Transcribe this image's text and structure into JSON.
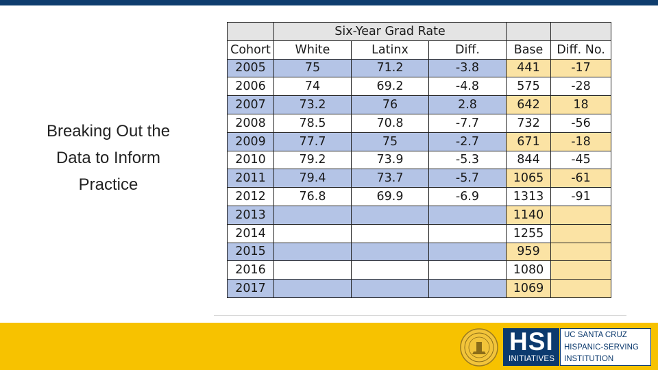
{
  "slide": {
    "title_lines": [
      "Breaking Out the",
      "Data to Inform",
      "Practice"
    ]
  },
  "table": {
    "group_header": "Six-Year Grad Rate",
    "columns": [
      "Cohort",
      "White",
      "Latinx",
      "Diff.",
      "Base",
      "Diff. No."
    ],
    "rows": [
      {
        "cohort": "2005",
        "white": "75",
        "latinx": "71.2",
        "diff": "-3.8",
        "base": "441",
        "diff_no": "-17"
      },
      {
        "cohort": "2006",
        "white": "74",
        "latinx": "69.2",
        "diff": "-4.8",
        "base": "575",
        "diff_no": "-28"
      },
      {
        "cohort": "2007",
        "white": "73.2",
        "latinx": "76",
        "diff": "2.8",
        "base": "642",
        "diff_no": "18"
      },
      {
        "cohort": "2008",
        "white": "78.5",
        "latinx": "70.8",
        "diff": "-7.7",
        "base": "732",
        "diff_no": "-56"
      },
      {
        "cohort": "2009",
        "white": "77.7",
        "latinx": "75",
        "diff": "-2.7",
        "base": "671",
        "diff_no": "-18"
      },
      {
        "cohort": "2010",
        "white": "79.2",
        "latinx": "73.9",
        "diff": "-5.3",
        "base": "844",
        "diff_no": "-45"
      },
      {
        "cohort": "2011",
        "white": "79.4",
        "latinx": "73.7",
        "diff": "-5.7",
        "base": "1065",
        "diff_no": "-61"
      },
      {
        "cohort": "2012",
        "white": "76.8",
        "latinx": "69.9",
        "diff": "-6.9",
        "base": "1313",
        "diff_no": "-91"
      },
      {
        "cohort": "2013",
        "white": "",
        "latinx": "",
        "diff": "",
        "base": "1140",
        "diff_no": ""
      },
      {
        "cohort": "2014",
        "white": "",
        "latinx": "",
        "diff": "",
        "base": "1255",
        "diff_no": ""
      },
      {
        "cohort": "2015",
        "white": "",
        "latinx": "",
        "diff": "",
        "base": "959",
        "diff_no": ""
      },
      {
        "cohort": "2016",
        "white": "",
        "latinx": "",
        "diff": "",
        "base": "1080",
        "diff_no": ""
      },
      {
        "cohort": "2017",
        "white": "",
        "latinx": "",
        "diff": "",
        "base": "1069",
        "diff_no": ""
      }
    ]
  },
  "footer": {
    "hsi_logo_text": "HSI",
    "hsi_logo_sub": "INITIATIVES",
    "ucsc_lines": [
      "UC SANTA CRUZ",
      "HISPANIC-SERVING",
      "INSTITUTION"
    ]
  },
  "colors": {
    "top_bar": "#0f3d6e",
    "bottom_band": "#f7c200",
    "row_blue": "#b4c4e6",
    "cell_amber": "#fbe3a4",
    "header_gray": "#e4e4e4",
    "logo_navy": "#0c3a6e"
  }
}
